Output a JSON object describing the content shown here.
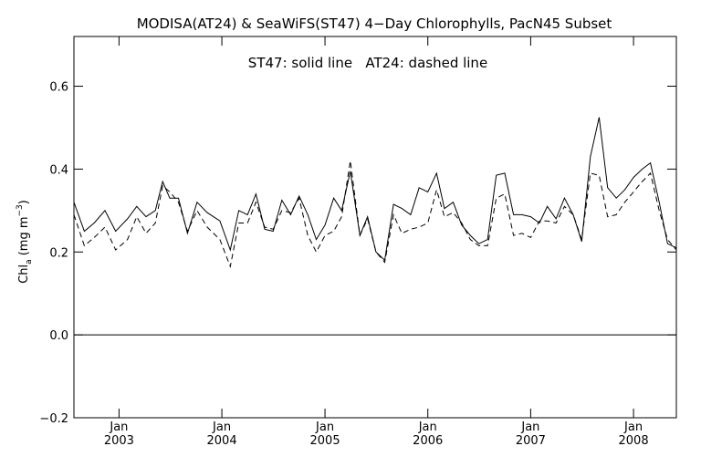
{
  "chart_data": {
    "type": "line",
    "title": "MODISA(AT24) & SeaWiFS(ST47) 4−Day Chlorophylls, PacN45 Subset",
    "annotation": "ST47: solid line   AT24: dashed line",
    "ylabel": {
      "main": "Chl",
      "sub": "a",
      "unit_open": " (mg m",
      "unit_sup": "−3",
      "unit_close": ")"
    },
    "ylim": [
      -0.2,
      0.72
    ],
    "xlim": [
      "2002-07-25",
      "2008-06-01"
    ],
    "y_ticks": [
      -0.2,
      0.0,
      0.2,
      0.4,
      0.6
    ],
    "y_tick_labels": [
      "−0.2",
      "0.0",
      "0.2",
      "0.4",
      "0.6"
    ],
    "x_ticks": [
      "2003-01-01",
      "2004-01-01",
      "2005-01-01",
      "2006-01-01",
      "2007-01-01",
      "2008-01-01"
    ],
    "x_tick_month_label": "Jan",
    "x_tick_year_labels": [
      "2003",
      "2004",
      "2005",
      "2006",
      "2007",
      "2008"
    ],
    "zero_line": true,
    "grid": false,
    "series": [
      {
        "name": "ST47",
        "style": "solid",
        "color": "#000000",
        "x": [
          "2002-07-25",
          "2002-08-31",
          "2002-10-05",
          "2002-11-12",
          "2002-12-20",
          "2003-01-31",
          "2003-03-05",
          "2003-04-07",
          "2003-05-10",
          "2003-06-05",
          "2003-06-30",
          "2003-07-31",
          "2003-09-01",
          "2003-10-05",
          "2003-11-10",
          "2003-12-25",
          "2004-01-31",
          "2004-03-01",
          "2004-04-01",
          "2004-05-01",
          "2004-06-01",
          "2004-07-01",
          "2004-08-01",
          "2004-09-01",
          "2004-10-01",
          "2004-11-01",
          "2004-12-01",
          "2005-01-01",
          "2005-02-01",
          "2005-03-01",
          "2005-04-01",
          "2005-05-05",
          "2005-06-01",
          "2005-07-01",
          "2005-08-01",
          "2005-09-01",
          "2005-10-01",
          "2005-11-01",
          "2005-12-01",
          "2006-01-01",
          "2006-02-01",
          "2006-03-01",
          "2006-04-01",
          "2006-05-01",
          "2006-06-01",
          "2006-07-01",
          "2006-08-01",
          "2006-09-01",
          "2006-10-01",
          "2006-11-01",
          "2006-12-01",
          "2007-01-01",
          "2007-02-01",
          "2007-03-01",
          "2007-04-01",
          "2007-05-01",
          "2007-06-01",
          "2007-07-01",
          "2007-08-01",
          "2007-09-01",
          "2007-10-01",
          "2007-11-01",
          "2007-12-01",
          "2008-01-01",
          "2008-02-01",
          "2008-03-01",
          "2008-04-01",
          "2008-05-01",
          "2008-06-01"
        ],
        "y": [
          0.32,
          0.25,
          0.27,
          0.3,
          0.25,
          0.28,
          0.31,
          0.285,
          0.3,
          0.37,
          0.33,
          0.33,
          0.245,
          0.32,
          0.295,
          0.275,
          0.205,
          0.3,
          0.29,
          0.34,
          0.255,
          0.25,
          0.325,
          0.29,
          0.335,
          0.29,
          0.23,
          0.265,
          0.33,
          0.3,
          0.395,
          0.24,
          0.285,
          0.2,
          0.18,
          0.315,
          0.305,
          0.29,
          0.355,
          0.345,
          0.39,
          0.305,
          0.32,
          0.265,
          0.24,
          0.22,
          0.23,
          0.385,
          0.39,
          0.29,
          0.29,
          0.285,
          0.27,
          0.31,
          0.28,
          0.33,
          0.29,
          0.225,
          0.43,
          0.525,
          0.355,
          0.33,
          0.35,
          0.38,
          0.4,
          0.415,
          0.32,
          0.22,
          0.21
        ]
      },
      {
        "name": "AT24",
        "style": "dashed",
        "color": "#000000",
        "x": [
          "2002-07-25",
          "2002-08-31",
          "2002-10-05",
          "2002-11-12",
          "2002-12-20",
          "2003-01-31",
          "2003-03-05",
          "2003-04-07",
          "2003-05-10",
          "2003-06-05",
          "2003-06-30",
          "2003-07-31",
          "2003-09-01",
          "2003-10-05",
          "2003-11-10",
          "2003-12-25",
          "2004-01-31",
          "2004-03-01",
          "2004-04-01",
          "2004-05-01",
          "2004-06-01",
          "2004-07-01",
          "2004-08-01",
          "2004-09-01",
          "2004-10-01",
          "2004-11-01",
          "2004-12-01",
          "2005-01-01",
          "2005-02-01",
          "2005-03-01",
          "2005-04-01",
          "2005-05-05",
          "2005-06-01",
          "2005-07-01",
          "2005-08-01",
          "2005-09-01",
          "2005-10-01",
          "2005-11-01",
          "2005-12-01",
          "2006-01-01",
          "2006-02-01",
          "2006-03-01",
          "2006-04-01",
          "2006-05-01",
          "2006-06-01",
          "2006-07-01",
          "2006-08-01",
          "2006-09-01",
          "2006-10-01",
          "2006-11-01",
          "2006-12-01",
          "2007-01-01",
          "2007-02-01",
          "2007-03-01",
          "2007-04-01",
          "2007-05-01",
          "2007-06-01",
          "2007-07-01",
          "2007-08-01",
          "2007-09-01",
          "2007-10-01",
          "2007-11-01",
          "2007-12-01",
          "2008-01-01",
          "2008-02-01",
          "2008-03-01",
          "2008-04-01",
          "2008-05-01",
          "2008-06-01"
        ],
        "y": [
          0.29,
          0.215,
          0.235,
          0.26,
          0.205,
          0.23,
          0.285,
          0.245,
          0.27,
          0.36,
          0.345,
          0.32,
          0.25,
          0.3,
          0.26,
          0.23,
          0.165,
          0.27,
          0.27,
          0.32,
          0.26,
          0.255,
          0.3,
          0.295,
          0.33,
          0.24,
          0.2,
          0.24,
          0.25,
          0.285,
          0.42,
          0.24,
          0.28,
          0.2,
          0.175,
          0.29,
          0.245,
          0.255,
          0.26,
          0.27,
          0.35,
          0.285,
          0.295,
          0.27,
          0.23,
          0.215,
          0.215,
          0.33,
          0.34,
          0.24,
          0.245,
          0.235,
          0.275,
          0.275,
          0.27,
          0.31,
          0.29,
          0.23,
          0.39,
          0.385,
          0.285,
          0.29,
          0.32,
          0.345,
          0.37,
          0.39,
          0.3,
          0.23,
          0.205
        ]
      }
    ]
  }
}
